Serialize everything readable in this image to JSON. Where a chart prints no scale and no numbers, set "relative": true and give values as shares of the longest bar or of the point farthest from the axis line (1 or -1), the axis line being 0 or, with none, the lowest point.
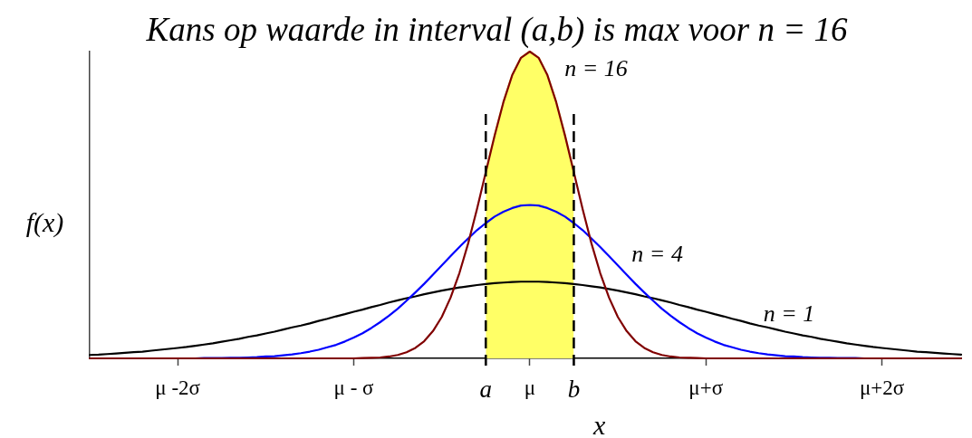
{
  "chart_data": {
    "type": "line",
    "title": "Kans op waarde in interval (a,b) is max voor n = 16",
    "xlabel": "x",
    "ylabel": "f(x)",
    "relative": true,
    "categories": [
      null,
      null,
      null,
      null,
      null,
      null,
      null,
      null,
      null,
      null,
      "μ -2σ",
      null,
      null,
      null,
      null,
      null,
      null,
      null,
      null,
      null,
      null,
      null,
      null,
      null,
      null,
      null,
      null,
      null,
      null,
      null,
      "μ - σ",
      null,
      null,
      null,
      null,
      null,
      null,
      null,
      null,
      null,
      null,
      null,
      null,
      null,
      null,
      "a",
      null,
      null,
      null,
      null,
      "μ",
      null,
      null,
      null,
      null,
      "b",
      null,
      null,
      null,
      null,
      null,
      null,
      null,
      null,
      null,
      null,
      null,
      null,
      null,
      null,
      "μ+σ",
      null,
      null,
      null,
      null,
      null,
      null,
      null,
      null,
      null,
      null,
      null,
      null,
      null,
      null,
      null,
      null,
      null,
      null,
      null,
      "μ+2σ",
      null,
      null,
      null,
      null,
      null,
      null,
      null,
      null,
      null
    ],
    "grid": false,
    "legend": false,
    "marker": "none",
    "line_style": "solid",
    "ref_lines": [
      {
        "axis": "x",
        "value": "a",
        "color": "#000000",
        "line_style": "dashed"
      },
      {
        "axis": "x",
        "value": "b",
        "color": "#000000",
        "line_style": "dashed"
      }
    ],
    "series": [
      {
        "type": "area",
        "color": "#ffff66",
        "values": [
          null,
          null,
          null,
          null,
          null,
          null,
          null,
          null,
          null,
          null,
          null,
          null,
          null,
          null,
          null,
          null,
          null,
          null,
          null,
          null,
          null,
          null,
          null,
          null,
          null,
          null,
          null,
          null,
          null,
          null,
          null,
          null,
          null,
          null,
          null,
          null,
          null,
          null,
          null,
          null,
          null,
          null,
          null,
          null,
          null,
          0.607,
          0.726,
          0.835,
          0.923,
          0.98,
          1,
          0.98,
          0.923,
          0.835,
          0.726,
          0.607,
          null,
          null,
          null,
          null,
          null,
          null,
          null,
          null,
          null,
          null,
          null,
          null,
          null,
          null,
          null,
          null,
          null,
          null,
          null,
          null,
          null,
          null,
          null,
          null,
          null,
          null,
          null,
          null,
          null,
          null,
          null,
          null,
          null,
          null,
          null,
          null,
          null,
          null,
          null,
          null,
          null,
          null,
          null,
          null
        ]
      },
      {
        "name": "n = 1",
        "color": "#000000",
        "values": [
          0.011,
          0.012,
          0.014,
          0.016,
          0.018,
          0.02,
          0.022,
          0.025,
          0.028,
          0.031,
          0.034,
          0.037,
          0.041,
          0.045,
          0.049,
          0.054,
          0.059,
          0.064,
          0.07,
          0.075,
          0.081,
          0.087,
          0.094,
          0.101,
          0.107,
          0.114,
          0.122,
          0.129,
          0.137,
          0.144,
          0.152,
          0.159,
          0.167,
          0.174,
          0.182,
          0.189,
          0.196,
          0.202,
          0.209,
          0.215,
          0.221,
          0.226,
          0.231,
          0.235,
          0.239,
          0.242,
          0.245,
          0.247,
          0.249,
          0.25,
          0.25,
          0.25,
          0.249,
          0.247,
          0.245,
          0.242,
          0.239,
          0.235,
          0.231,
          0.226,
          0.221,
          0.215,
          0.209,
          0.202,
          0.196,
          0.189,
          0.182,
          0.174,
          0.167,
          0.159,
          0.152,
          0.144,
          0.137,
          0.129,
          0.122,
          0.114,
          0.107,
          0.101,
          0.094,
          0.087,
          0.081,
          0.075,
          0.07,
          0.064,
          0.059,
          0.054,
          0.049,
          0.045,
          0.041,
          0.037,
          0.034,
          0.031,
          0.028,
          0.025,
          0.022,
          0.02,
          0.018,
          0.016,
          0.014,
          0.012
        ]
      },
      {
        "name": "n = 4",
        "color": "#0000ff",
        "values": [
          null,
          null,
          null,
          null,
          null,
          null,
          null,
          null,
          null,
          null,
          null,
          0,
          0,
          0.001,
          0.001,
          0.001,
          0.002,
          0.002,
          0.003,
          0.004,
          0.006,
          0.007,
          0.01,
          0.013,
          0.017,
          0.022,
          0.028,
          0.036,
          0.044,
          0.055,
          0.068,
          0.082,
          0.099,
          0.118,
          0.139,
          0.162,
          0.188,
          0.215,
          0.243,
          0.273,
          0.303,
          0.333,
          0.363,
          0.391,
          0.418,
          0.441,
          0.462,
          0.478,
          0.49,
          0.498,
          0.5,
          0.498,
          0.49,
          0.478,
          0.462,
          0.441,
          0.418,
          0.391,
          0.363,
          0.333,
          0.303,
          0.273,
          0.243,
          0.215,
          0.188,
          0.162,
          0.139,
          0.118,
          0.099,
          0.082,
          0.068,
          0.055,
          0.044,
          0.036,
          0.028,
          0.022,
          0.017,
          0.013,
          0.01,
          0.007,
          0.006,
          0.004,
          0.003,
          0.002,
          0.002,
          0.001,
          0.001,
          0.001,
          0,
          null,
          null,
          null,
          null,
          null,
          null,
          null,
          null,
          null,
          null,
          null
        ]
      },
      {
        "name": "n = 16",
        "color": "#800000",
        "values": [
          0,
          0,
          0,
          0,
          0,
          0,
          0,
          0,
          0,
          0,
          0,
          0,
          0,
          0,
          0,
          0,
          0,
          0,
          0,
          0,
          0,
          0,
          0,
          0,
          0,
          0,
          0,
          0,
          0,
          0,
          0,
          0.001,
          0.002,
          0.003,
          0.006,
          0.011,
          0.02,
          0.034,
          0.056,
          0.089,
          0.135,
          0.198,
          0.278,
          0.375,
          0.487,
          0.607,
          0.726,
          0.835,
          0.923,
          0.98,
          1,
          0.98,
          0.923,
          0.835,
          0.726,
          0.607,
          0.487,
          0.375,
          0.278,
          0.198,
          0.135,
          0.089,
          0.056,
          0.034,
          0.02,
          0.011,
          0.006,
          0.003,
          0.002,
          0.001,
          0,
          0,
          0,
          0,
          0,
          0,
          0,
          0,
          0,
          0,
          0,
          0,
          0,
          0,
          0,
          0,
          0,
          0,
          0,
          0,
          0,
          0,
          0,
          0,
          0,
          0,
          0,
          0,
          0,
          0
        ]
      }
    ]
  }
}
